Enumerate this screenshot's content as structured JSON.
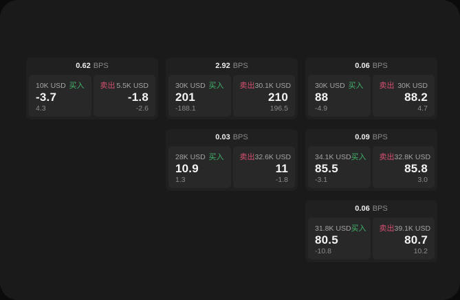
{
  "page": {
    "bg_outer": "#0b0b0b",
    "bg_surface": "#1a1a1a",
    "card_bg": "#202020",
    "panel_bg": "#282828"
  },
  "labels": {
    "bps_unit": "BPS",
    "buy": "买入",
    "sell": "卖出"
  },
  "colors": {
    "buy_accent": "#41b46a",
    "sell_accent": "#d5506f"
  },
  "cards": [
    {
      "bps": "0.62",
      "buy": {
        "amount": "10K USD",
        "price": "-3.7",
        "sub": "4.3"
      },
      "sell": {
        "amount": "5.5K USD",
        "price": "-1.8",
        "sub": "-2.6"
      }
    },
    {
      "bps": "2.92",
      "buy": {
        "amount": "30K USD",
        "price": "201",
        "sub": "-188.1"
      },
      "sell": {
        "amount": "30.1K USD",
        "price": "210",
        "sub": "196.5"
      }
    },
    {
      "bps": "0.06",
      "buy": {
        "amount": "30K USD",
        "price": "88",
        "sub": "-4.9"
      },
      "sell": {
        "amount": "30K USD",
        "price": "88.2",
        "sub": "4.7"
      }
    },
    {
      "bps": "0.03",
      "buy": {
        "amount": "28K USD",
        "price": "10.9",
        "sub": "1.3"
      },
      "sell": {
        "amount": "32.6K USD",
        "price": "11",
        "sub": "-1.8"
      }
    },
    {
      "bps": "0.09",
      "buy": {
        "amount": "34.1K USD",
        "price": "85.5",
        "sub": "-3.1"
      },
      "sell": {
        "amount": "32.8K USD",
        "price": "85.8",
        "sub": "3.0"
      }
    },
    {
      "bps": "0.06",
      "buy": {
        "amount": "31.8K USD",
        "price": "80.5",
        "sub": "-10.8"
      },
      "sell": {
        "amount": "39.1K USD",
        "price": "80.7",
        "sub": "10.2"
      }
    }
  ]
}
